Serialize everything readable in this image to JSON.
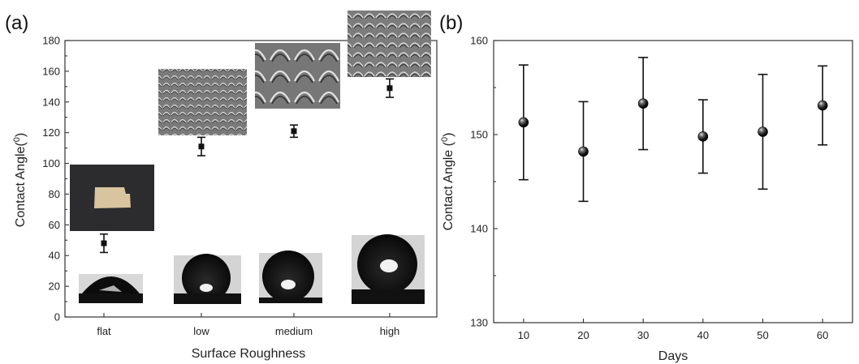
{
  "chart_data": [
    {
      "panel_label": "(a)",
      "type": "scatter",
      "categories": [
        "flat",
        "low",
        "medium",
        "high"
      ],
      "values": [
        48,
        111,
        121,
        149
      ],
      "errors": [
        6,
        6,
        4,
        6
      ],
      "xlabel": "Surface Roughness",
      "ylabel": "Contact Angle(",
      "ylabel_sup": "0",
      "ylabel_end": ")",
      "ylim": [
        0,
        180
      ],
      "yticks": [
        "0",
        "20",
        "40",
        "60",
        "80",
        "100",
        "120",
        "140",
        "160",
        "180"
      ],
      "marker": "square",
      "insets": [
        "SEM surface texture image",
        "droplet contact angle photograph",
        "photograph of flat sample"
      ]
    },
    {
      "panel_label": "(b)",
      "type": "scatter",
      "x": [
        10,
        20,
        30,
        40,
        50,
        60
      ],
      "values": [
        151.3,
        148.2,
        153.3,
        149.8,
        150.3,
        153.1
      ],
      "errors": [
        6.1,
        5.3,
        4.9,
        3.9,
        6.1,
        4.2
      ],
      "xlabel": "Days",
      "ylabel": "Contact Angle (",
      "ylabel_sup": "0",
      "ylabel_end": ")",
      "xlim": [
        5,
        65
      ],
      "ylim": [
        130,
        160
      ],
      "xticks": [
        "10",
        "20",
        "30",
        "40",
        "50",
        "60"
      ],
      "yticks": [
        "130",
        "140",
        "150",
        "160"
      ],
      "marker": "sphere"
    }
  ],
  "colors": {
    "marker": "#111111",
    "axis": "#333333",
    "sem_bg": "#6e6e6e",
    "sample_bg": "#2c2c2e",
    "sample": "#d9c4a0"
  }
}
